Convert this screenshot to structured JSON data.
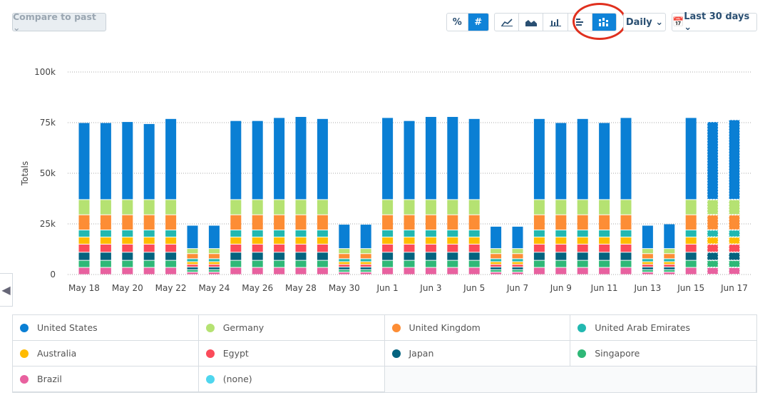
{
  "toolbar": {
    "compare_label": "Compare to past ⌄",
    "percent_label": "%",
    "number_label": "#",
    "interval_label": "Daily ⌄",
    "range_label": "Last 30 days ⌄",
    "chart_types": [
      "line-chart-icon",
      "area-chart-icon",
      "bar-chart-icon",
      "horizontal-bar-icon",
      "stacked-bar-icon"
    ],
    "active_chart_type": "stacked-bar-icon"
  },
  "chart_data": {
    "type": "bar",
    "stacked": true,
    "ylabel": "Totals",
    "ylim": [
      0,
      100000
    ],
    "yticks": [
      "0",
      "25k",
      "50k",
      "75k",
      "100k"
    ],
    "grid": true,
    "legend": "bottom",
    "categories": [
      "May 18",
      "May 19",
      "May 20",
      "May 21",
      "May 22",
      "May 23",
      "May 24",
      "May 25",
      "May 26",
      "May 27",
      "May 28",
      "May 29",
      "May 30",
      "May 31",
      "Jun 1",
      "Jun 2",
      "Jun 3",
      "Jun 4",
      "Jun 5",
      "Jun 6",
      "Jun 7",
      "Jun 8",
      "Jun 9",
      "Jun 10",
      "Jun 11",
      "Jun 12",
      "Jun 13",
      "Jun 14",
      "Jun 15",
      "Jun 16",
      "Jun 17"
    ],
    "xticks": [
      "May 18",
      "May 20",
      "May 22",
      "May 24",
      "May 26",
      "May 28",
      "May 30",
      "Jun 1",
      "Jun 3",
      "Jun 5",
      "Jun 7",
      "Jun 9",
      "Jun 11",
      "Jun 13",
      "Jun 15",
      "Jun 17"
    ],
    "series": [
      {
        "name": "Brazil",
        "color": "#e8619f",
        "values": [
          3500,
          3500,
          3500,
          3500,
          3500,
          1200,
          1200,
          3500,
          3500,
          3500,
          3500,
          3500,
          1200,
          1200,
          3500,
          3500,
          3500,
          3500,
          3500,
          1200,
          1200,
          3500,
          3500,
          3500,
          3500,
          3500,
          1200,
          1200,
          3500,
          3500,
          3500
        ]
      },
      {
        "name": "Singapore",
        "color": "#2fb877",
        "values": [
          3500,
          3500,
          3500,
          3500,
          3500,
          1200,
          1200,
          3500,
          3500,
          3500,
          3500,
          3500,
          1200,
          1200,
          3500,
          3500,
          3500,
          3500,
          3500,
          1200,
          1200,
          3500,
          3500,
          3500,
          3500,
          3500,
          1200,
          1200,
          3500,
          3500,
          3500
        ]
      },
      {
        "name": "Japan",
        "color": "#04637f",
        "values": [
          4000,
          4000,
          4000,
          4000,
          4000,
          1300,
          1300,
          4000,
          4000,
          4000,
          4000,
          4000,
          1300,
          1300,
          4000,
          4000,
          4000,
          4000,
          4000,
          1300,
          1300,
          4000,
          4000,
          4000,
          4000,
          4000,
          1300,
          1300,
          4000,
          4000,
          4000
        ]
      },
      {
        "name": "Egypt",
        "color": "#fb4b5a",
        "values": [
          4000,
          4000,
          4000,
          4000,
          4000,
          1300,
          1300,
          4000,
          4000,
          4000,
          4000,
          4000,
          1300,
          1300,
          4000,
          4000,
          4000,
          4000,
          4000,
          1300,
          1300,
          4000,
          4000,
          4000,
          4000,
          4000,
          1300,
          1300,
          4000,
          4000,
          4000
        ]
      },
      {
        "name": "Australia",
        "color": "#ffbb00",
        "values": [
          3500,
          3500,
          3500,
          3500,
          3500,
          1300,
          1300,
          3500,
          3500,
          3500,
          3500,
          3500,
          1300,
          1300,
          3500,
          3500,
          3500,
          3500,
          3500,
          1300,
          1300,
          3500,
          3500,
          3500,
          3500,
          3500,
          1300,
          1300,
          3500,
          3500,
          3500
        ]
      },
      {
        "name": "United Arab Emirates",
        "color": "#22b8b0",
        "values": [
          3500,
          3500,
          3500,
          3500,
          3500,
          1500,
          1500,
          3500,
          3500,
          3500,
          3500,
          3500,
          1500,
          1500,
          3500,
          3500,
          3500,
          3500,
          3500,
          1500,
          1500,
          3500,
          3500,
          3500,
          3500,
          3500,
          1500,
          1500,
          3500,
          3500,
          3500
        ]
      },
      {
        "name": "United Kingdom",
        "color": "#fd8d35",
        "values": [
          7500,
          7500,
          7500,
          7500,
          7500,
          2500,
          2500,
          7500,
          7500,
          7500,
          7500,
          7500,
          2500,
          2500,
          7500,
          7500,
          7500,
          7500,
          7500,
          2500,
          2500,
          7500,
          7500,
          7500,
          7500,
          7500,
          2500,
          2500,
          7500,
          7500,
          7500
        ]
      },
      {
        "name": "Germany",
        "color": "#b5e272",
        "values": [
          7500,
          7500,
          7500,
          7500,
          7500,
          2500,
          2500,
          7500,
          7500,
          7500,
          7500,
          7500,
          2500,
          2500,
          7500,
          7500,
          7500,
          7500,
          7500,
          2500,
          2500,
          7500,
          7500,
          7500,
          7500,
          7500,
          2500,
          2500,
          7500,
          7500,
          7500
        ]
      },
      {
        "name": "United States",
        "color": "#0a7fd4",
        "values": [
          38000,
          38000,
          38500,
          37500,
          40000,
          11500,
          11500,
          39000,
          39000,
          40500,
          41000,
          40000,
          12000,
          12000,
          40500,
          39000,
          41000,
          41000,
          40000,
          11000,
          11000,
          40000,
          38000,
          40000,
          38000,
          40500,
          11500,
          12200,
          40500,
          38500,
          39500
        ]
      },
      {
        "name": "(none)",
        "color": "#4fd6ee",
        "values": [
          0,
          0,
          0,
          0,
          0,
          0,
          0,
          0,
          0,
          0,
          0,
          0,
          0,
          0,
          0,
          0,
          0,
          0,
          0,
          0,
          0,
          0,
          0,
          0,
          0,
          0,
          0,
          0,
          0,
          0,
          0
        ]
      }
    ]
  },
  "legend": [
    {
      "name": "United States",
      "color": "#0a7fd4"
    },
    {
      "name": "Germany",
      "color": "#b5e272"
    },
    {
      "name": "United Kingdom",
      "color": "#fd8d35"
    },
    {
      "name": "United Arab Emirates",
      "color": "#22b8b0"
    },
    {
      "name": "Australia",
      "color": "#ffbb00"
    },
    {
      "name": "Egypt",
      "color": "#fb4b5a"
    },
    {
      "name": "Japan",
      "color": "#04637f"
    },
    {
      "name": "Singapore",
      "color": "#2fb877"
    },
    {
      "name": "Brazil",
      "color": "#e8619f"
    },
    {
      "name": "(none)",
      "color": "#4fd6ee"
    }
  ]
}
